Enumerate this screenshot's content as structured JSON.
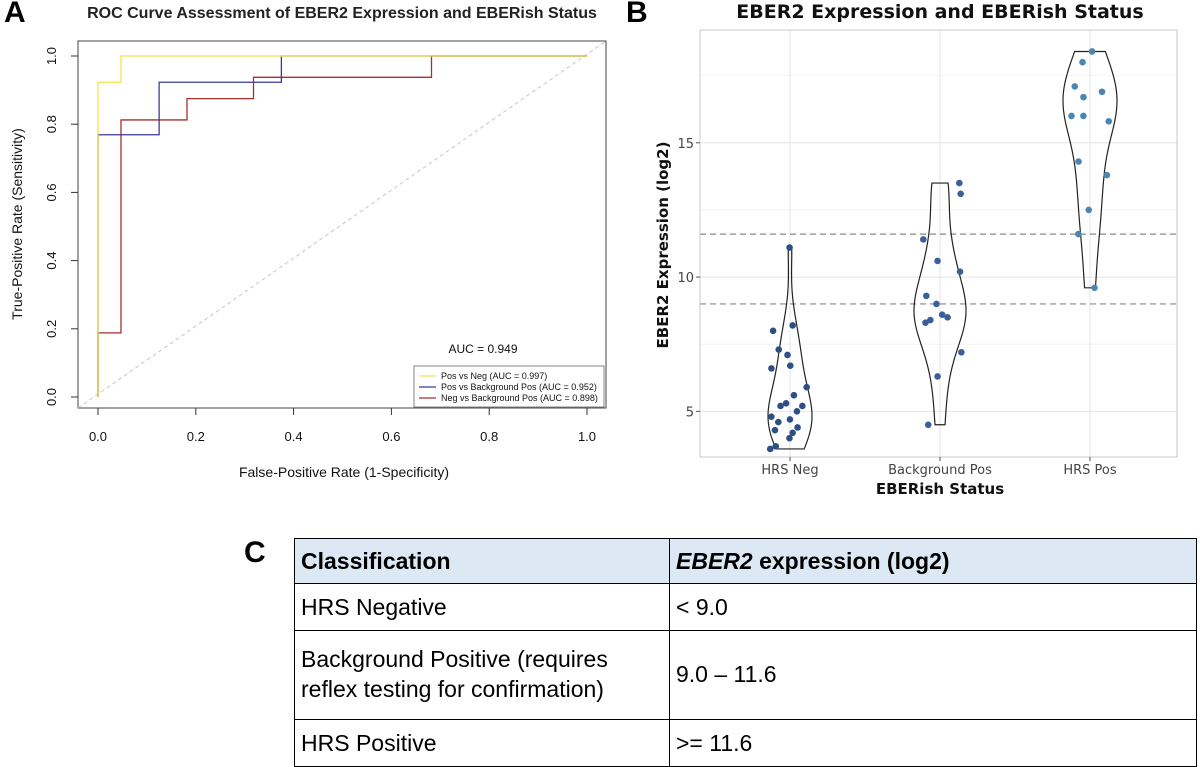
{
  "panels": {
    "a": "A",
    "b": "B",
    "c": "C"
  },
  "chart_data": [
    {
      "type": "line",
      "title": "ROC Curve Assessment of EBER2 Expression and EBERish Status",
      "xlabel": "False-Positive Rate (1-Specificity)",
      "ylabel": "True-Positive Rate (Sensitivity)",
      "xlim": [
        0,
        1
      ],
      "ylim": [
        0,
        1
      ],
      "xticks": [
        "0.0",
        "0.2",
        "0.4",
        "0.6",
        "0.8",
        "1.0"
      ],
      "yticks": [
        "0.0",
        "0.2",
        "0.4",
        "0.6",
        "0.8",
        "1.0"
      ],
      "annotation": "AUC = 0.949",
      "legend_position": "bottom-right",
      "reference_line": {
        "from": [
          0,
          0
        ],
        "to": [
          1,
          1
        ],
        "style": "dashed",
        "color": "#c8c8c8"
      },
      "series": [
        {
          "name": "Pos vs Neg (AUC = 0.997)",
          "color": "#f2e44a",
          "x": [
            0,
            0,
            0.047,
            0.047,
            1.0
          ],
          "y": [
            0,
            0.923,
            0.923,
            1.0,
            1.0
          ]
        },
        {
          "name": "Pos vs Background Pos (AUC = 0.952)",
          "color": "#3a3a9e",
          "x": [
            0,
            0,
            0.125,
            0.125,
            0.375,
            0.375,
            1.0
          ],
          "y": [
            0,
            0.769,
            0.769,
            0.923,
            0.923,
            1.0,
            1.0
          ]
        },
        {
          "name": "Neg vs Background Pos (AUC = 0.898)",
          "color": "#a8302a",
          "x": [
            0,
            0,
            0.047,
            0.047,
            0.125,
            0.125,
            0.182,
            0.182,
            0.318,
            0.318,
            0.682,
            0.682,
            1.0
          ],
          "y": [
            0,
            0.188,
            0.188,
            0.8125,
            0.8125,
            0.8125,
            0.8125,
            0.875,
            0.875,
            0.9375,
            0.9375,
            1.0,
            1.0
          ]
        }
      ]
    },
    {
      "type": "scatter",
      "subtype": "violin",
      "title": "EBER2 Expression and EBERish Status",
      "xlabel": "EBERish Status",
      "ylabel": "EBER2 Expression (log2)",
      "categories": [
        "HRS Neg",
        "Background Pos",
        "HRS Pos"
      ],
      "ylim": [
        3.3,
        19.2
      ],
      "yticks": [
        5,
        10,
        15
      ],
      "grid": true,
      "thresholds": [
        9.0,
        11.6
      ],
      "series": [
        {
          "name": "HRS Neg",
          "color": "#2d4f86",
          "values": [
            11.1,
            8.2,
            8.0,
            7.3,
            7.1,
            6.7,
            6.6,
            5.9,
            5.6,
            5.3,
            5.2,
            5.2,
            5.0,
            4.8,
            4.7,
            4.6,
            4.4,
            4.3,
            4.2,
            4.0,
            3.7,
            3.6
          ]
        },
        {
          "name": "Background Pos",
          "color": "#3a609a",
          "values": [
            13.5,
            13.1,
            11.4,
            10.6,
            10.2,
            9.3,
            9.0,
            8.6,
            8.5,
            8.4,
            8.3,
            7.2,
            6.3,
            4.5
          ]
        },
        {
          "name": "HRS Pos",
          "color": "#4b86b3",
          "values": [
            18.4,
            18.0,
            17.1,
            16.9,
            16.7,
            16.0,
            16.0,
            15.8,
            14.3,
            13.8,
            12.5,
            11.6,
            9.6
          ]
        }
      ]
    }
  ],
  "table": {
    "headers": {
      "col1": "Classification",
      "col2_italic": "EBER2",
      "col2_rest": " expression (log2)"
    },
    "rows": [
      {
        "classification": "HRS Negative",
        "expression": "< 9.0"
      },
      {
        "classification_line1": "Background Positive (requires",
        "classification_line2": "reflex testing for confirmation)",
        "expression": "9.0 – 11.6"
      },
      {
        "classification": "HRS Positive",
        "expression": ">= 11.6"
      }
    ]
  }
}
